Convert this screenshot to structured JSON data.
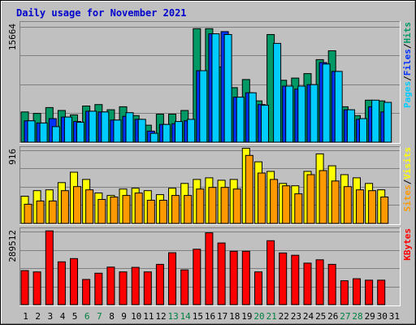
{
  "chart_data": {
    "type": "bar",
    "title": "Daily usage for November 2021",
    "categories": [
      "1",
      "2",
      "3",
      "4",
      "5",
      "6",
      "7",
      "8",
      "9",
      "10",
      "11",
      "12",
      "13",
      "14",
      "15",
      "16",
      "17",
      "18",
      "19",
      "20",
      "21",
      "22",
      "23",
      "24",
      "25",
      "26",
      "27",
      "28",
      "29",
      "30",
      "31"
    ],
    "weekend_days": [
      "6",
      "7",
      "13",
      "14",
      "20",
      "21",
      "27",
      "28"
    ],
    "panels": [
      {
        "name": "hits_files_pages",
        "ymax_label": "15664",
        "ylim": [
          0,
          16200
        ],
        "legend": [
          {
            "label": "Pages",
            "color": "#00ccff"
          },
          {
            "label": "/",
            "color": "#000000"
          },
          {
            "label": "Files",
            "color": "#0033ff"
          },
          {
            "label": "/",
            "color": "#000000"
          },
          {
            "label": "Hits",
            "color": "#009966"
          }
        ],
        "series": [
          {
            "name": "Hits",
            "color": "#009966",
            "values": [
              4100,
              3900,
              4700,
              4300,
              3700,
              4900,
              5100,
              4400,
              4800,
              3600,
              2300,
              3800,
              3800,
              4300,
              15400,
              15400,
              10200,
              7400,
              8500,
              5600,
              14600,
              8400,
              8700,
              9300,
              11200,
              12400,
              4800,
              3600,
              5700,
              5600,
              0
            ]
          },
          {
            "name": "Files",
            "color": "#0033ff",
            "values": [
              2900,
              2600,
              3200,
              3400,
              2800,
              4200,
              4100,
              3000,
              3500,
              3100,
              1500,
              2400,
              2500,
              2900,
              9700,
              14700,
              15000,
              6100,
              6700,
              5100,
              0,
              7600,
              7200,
              7800,
              10800,
              9600,
              4400,
              3100,
              4800,
              4100,
              0
            ]
          },
          {
            "name": "Pages",
            "color": "#00ccff",
            "values": [
              2900,
              2600,
              2100,
              3400,
              2700,
              4200,
              4100,
              3000,
              4000,
              3100,
              1200,
              2400,
              2800,
              3100,
              9700,
              14700,
              14600,
              6100,
              6700,
              5000,
              13400,
              7600,
              7600,
              7800,
              10600,
              9600,
              4400,
              3200,
              5700,
              5400,
              0
            ]
          }
        ]
      },
      {
        "name": "visits_sites",
        "ymax_label": "916",
        "ylim": [
          0,
          945
        ],
        "legend": [
          {
            "label": "Sites",
            "color": "#ff9900"
          },
          {
            "label": "/",
            "color": "#000000"
          },
          {
            "label": "Visits",
            "color": "#ffff00"
          }
        ],
        "series": [
          {
            "name": "Visits",
            "color": "#ffff00",
            "values": [
              340,
              410,
              420,
              510,
              640,
              550,
              380,
              350,
              430,
              440,
              410,
              360,
              440,
              500,
              550,
              570,
              540,
              550,
              940,
              770,
              650,
              500,
              470,
              650,
              870,
              720,
              610,
              570,
              500,
              420,
              0
            ]
          },
          {
            "name": "Sites",
            "color": "#ff9900",
            "values": [
              240,
              280,
              280,
              410,
              460,
              420,
              300,
              330,
              350,
              380,
              290,
              290,
              350,
              350,
              430,
              450,
              450,
              430,
              850,
              630,
              550,
              470,
              370,
              610,
              660,
              530,
              460,
              420,
              410,
              330,
              0
            ]
          }
        ]
      },
      {
        "name": "kbytes",
        "ymax_label": "289512",
        "ylim": [
          0,
          300000
        ],
        "legend": [
          {
            "label": "KBytes",
            "color": "#ff0000"
          }
        ],
        "series": [
          {
            "name": "KBytes",
            "color": "#ff0000",
            "values": [
              135000,
              130000,
              293000,
              170000,
              183000,
              100000,
              125000,
              149000,
              130000,
              148000,
              130000,
              160000,
              206000,
              138000,
              220000,
              285000,
              245000,
              212000,
              212000,
              130000,
              254000,
              205000,
              196000,
              165000,
              178000,
              160000,
              95000,
              103000,
              97000,
              97000,
              0
            ]
          }
        ]
      }
    ]
  }
}
